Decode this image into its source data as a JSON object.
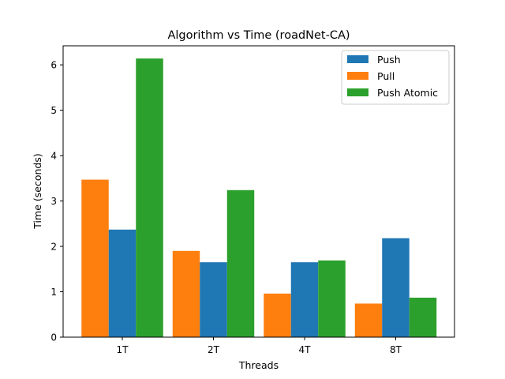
{
  "chart_data": {
    "type": "bar",
    "title": "Algorithm vs Time (roadNet-CA)",
    "xlabel": "Threads",
    "ylabel": "Time (seconds)",
    "categories": [
      "1T",
      "2T",
      "4T",
      "8T"
    ],
    "ylim": [
      0,
      6.42
    ],
    "yticks": [
      0,
      1,
      2,
      3,
      4,
      5,
      6
    ],
    "grid": false,
    "legend_position": "top-right",
    "series": [
      {
        "name": "Push",
        "color": "#1f77b4",
        "values": [
          2.37,
          1.65,
          1.65,
          2.18
        ]
      },
      {
        "name": "Pull",
        "color": "#ff7f0e",
        "values": [
          3.47,
          1.9,
          0.96,
          0.74
        ]
      },
      {
        "name": "Push Atomic",
        "color": "#2ca02c",
        "values": [
          6.14,
          3.24,
          1.69,
          0.87
        ]
      }
    ],
    "bar_order": [
      "Pull",
      "Push",
      "Push Atomic"
    ]
  }
}
